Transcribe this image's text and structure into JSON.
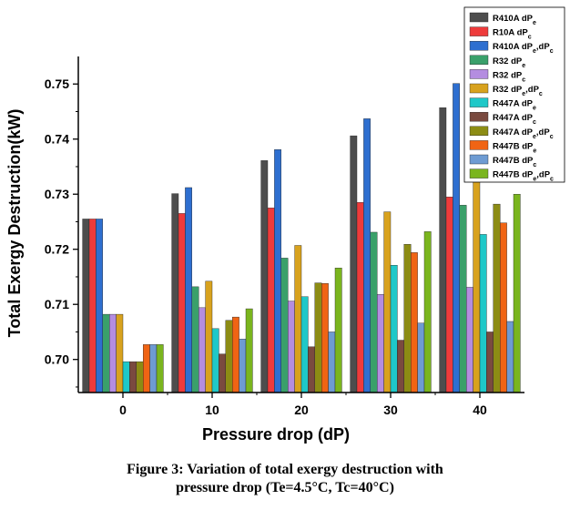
{
  "chart_data": {
    "type": "bar",
    "xlabel": "Pressure drop (dP)",
    "ylabel": "Total Exergy Destruction(kW)",
    "categories": [
      "0",
      "10",
      "20",
      "30",
      "40"
    ],
    "ylim": [
      0.694,
      0.755
    ],
    "yticks": [
      "0.70",
      "0.71",
      "0.72",
      "0.73",
      "0.74",
      "0.75"
    ],
    "ytick_values": [
      0.7,
      0.71,
      0.72,
      0.73,
      0.74,
      0.75
    ],
    "legend_position": "top-right",
    "series": [
      {
        "name": "R410A dP",
        "sub": "e",
        "color": "#4d4d4d",
        "values": [
          0.7255,
          0.7301,
          0.7361,
          0.7406,
          0.7457
        ]
      },
      {
        "name": "R10A dP",
        "sub": "c",
        "color": "#ee3b3b",
        "values": [
          0.7255,
          0.7265,
          0.7275,
          0.7285,
          0.7295
        ]
      },
      {
        "name": "R410A dP",
        "sub": "e",
        "mid": ",dP",
        "sub2": "c",
        "color": "#2e6fd0",
        "values": [
          0.7255,
          0.7312,
          0.7381,
          0.7437,
          0.7501
        ]
      },
      {
        "name": "R32 dP",
        "sub": "e",
        "color": "#3aa06a",
        "values": [
          0.7082,
          0.7132,
          0.7184,
          0.7231,
          0.728
        ]
      },
      {
        "name": "R32 dP",
        "sub": "c",
        "color": "#b48de0",
        "values": [
          0.7082,
          0.7094,
          0.7106,
          0.7118,
          0.7131
        ]
      },
      {
        "name": "R32 dP",
        "sub": "e",
        "mid": ",dP",
        "sub2": "c",
        "color": "#d8a21e",
        "values": [
          0.7082,
          0.7142,
          0.7207,
          0.7268,
          0.7328
        ]
      },
      {
        "name": "R447A dP",
        "sub": "e",
        "color": "#1fc8c8",
        "values": [
          0.6996,
          0.7056,
          0.7114,
          0.7171,
          0.7227
        ]
      },
      {
        "name": "R447A dP",
        "sub": "c",
        "color": "#7a4a3f",
        "values": [
          0.6996,
          0.701,
          0.7023,
          0.7035,
          0.705
        ]
      },
      {
        "name": "R447A dP",
        "sub": "e",
        "mid": ",dP",
        "sub2": "c",
        "color": "#8c8c14",
        "values": [
          0.6996,
          0.7071,
          0.7139,
          0.7209,
          0.7282
        ]
      },
      {
        "name": "R447B dP",
        "sub": "e",
        "color": "#f06414",
        "values": [
          0.7027,
          0.7077,
          0.7138,
          0.7194,
          0.7248
        ]
      },
      {
        "name": "R447B dP",
        "sub": "c",
        "color": "#6e9bd2",
        "values": [
          0.7027,
          0.7037,
          0.705,
          0.7066,
          0.7069
        ]
      },
      {
        "name": "R447B dP",
        "sub": "e",
        "mid": ",dP",
        "sub2": "c",
        "color": "#7ab51e",
        "values": [
          0.7027,
          0.7092,
          0.7166,
          0.7232,
          0.73
        ]
      }
    ]
  },
  "caption": {
    "line1": "Figure 3: Variation of total exergy destruction with",
    "line2": "pressure drop (Te=4.5°C, Tc=40°C)"
  }
}
